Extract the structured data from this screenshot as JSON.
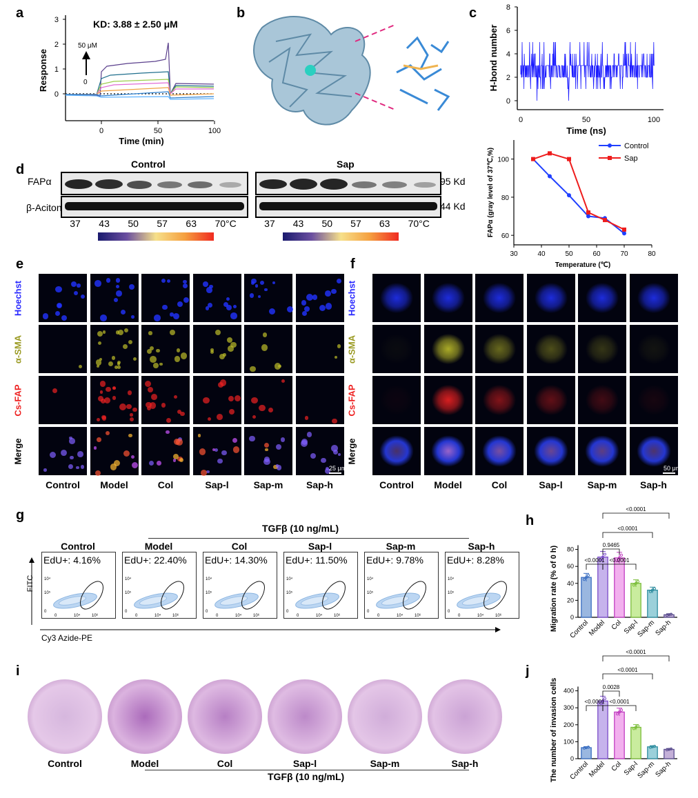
{
  "panels": {
    "a": "a",
    "b": "b",
    "c": "c",
    "d": "d",
    "e": "e",
    "f": "f",
    "g": "g",
    "h": "h",
    "i": "i",
    "j": "j"
  },
  "panel_a": {
    "title": "KD: 3.88 ± 2.50 μM",
    "ylabel": "Response",
    "xlabel": "Time (min)",
    "arrow_top": "50 μM",
    "arrow_bottom": "0",
    "yticks": [
      "0",
      "1",
      "2",
      "3"
    ],
    "xticks": [
      "0",
      "50",
      "100"
    ]
  },
  "panel_c": {
    "ylabel": "H-bond number",
    "xlabel": "Time (ns)",
    "yticks": [
      "0",
      "2",
      "4",
      "6",
      "8"
    ],
    "xticks": [
      "0",
      "50",
      "100"
    ]
  },
  "panel_d": {
    "header_left": "Control",
    "header_right": "Sap",
    "row1": "FAPα",
    "row2": "β-Aciton",
    "size1": "95 Kd",
    "size2": "44 Kd",
    "temps": [
      "37",
      "43",
      "50",
      "57",
      "63",
      "70°C"
    ]
  },
  "panel_e": {
    "rows": [
      "Hoechst",
      "α-SMA",
      "Cs-FAP",
      "Merge"
    ],
    "cols": [
      "Control",
      "Model",
      "Col",
      "Sap-l",
      "Sap-m",
      "Sap-h"
    ],
    "scale": "25 μm"
  },
  "panel_f": {
    "rows": [
      "Hoechst",
      "α-SMA",
      "Cs-FAP",
      "Merge"
    ],
    "cols": [
      "Control",
      "Model",
      "Col",
      "Sap-l",
      "Sap-m",
      "Sap-h"
    ],
    "scale": "50 μm"
  },
  "panel_g": {
    "treatment": "TGFβ (10 ng/mL)",
    "groups": [
      "Control",
      "Model",
      "Col",
      "Sap-l",
      "Sap-m",
      "Sap-h"
    ],
    "edu": [
      "EdU+: 4.16%",
      "EdU+: 22.40%",
      "EdU+: 14.30%",
      "EdU+: 11.50%",
      "EdU+: 9.78%",
      "EdU+: 8.28%"
    ],
    "ylabel": "FITC",
    "xlabel": "Cy3 Azide-PE"
  },
  "panel_i": {
    "groups": [
      "Control",
      "Model",
      "Col",
      "Sap-l",
      "Sap-m",
      "Sap-h"
    ],
    "treatment": "TGFβ (10 ng/mL)"
  },
  "chart_data": [
    {
      "id": "c-bottom",
      "type": "line",
      "ylabel": "FAPα (gray level of 37℃,%)",
      "xlabel": "Temperature (℃)",
      "xlim": [
        30,
        80
      ],
      "ylim": [
        55,
        110
      ],
      "xticks": [
        30,
        40,
        50,
        60,
        70,
        80
      ],
      "yticks": [
        60,
        80,
        100
      ],
      "legend_position": "top-right",
      "series": [
        {
          "name": "Control",
          "color": "#1f3fff",
          "x": [
            37,
            43,
            50,
            57,
            63,
            70
          ],
          "y": [
            100,
            91,
            81,
            70,
            69,
            61
          ]
        },
        {
          "name": "Sap",
          "color": "#ee1c1c",
          "x": [
            37,
            43,
            50,
            57,
            63,
            70
          ],
          "y": [
            100,
            103,
            100,
            72,
            68,
            63
          ]
        }
      ]
    },
    {
      "id": "h",
      "type": "bar",
      "ylabel": "Migration rate (% of 0 h)",
      "categories": [
        "Control",
        "Model",
        "Col",
        "Sap-l",
        "Sap-m",
        "Sap-h"
      ],
      "values": [
        47,
        71,
        70,
        40,
        32,
        3
      ],
      "ylim": [
        0,
        100
      ],
      "yticks": [
        0,
        20,
        40,
        60,
        80
      ],
      "colors": [
        "#9ab7e0",
        "#c6b3ec",
        "#f2b0ee",
        "#c9ec9e",
        "#9bd0da",
        "#c4b0d8"
      ],
      "edge_colors": [
        "#3b6fc2",
        "#7a4cc9",
        "#c03ec0",
        "#7bbd3a",
        "#2f8ea0",
        "#5b4e8f"
      ],
      "comparisons": [
        {
          "a": "Model",
          "b": "Col",
          "p": "0.9465"
        },
        {
          "a": "Control",
          "b": "Model",
          "p": "<0.0001"
        },
        {
          "a": "Model",
          "b": "Sap-l",
          "p": "<0.0001"
        },
        {
          "a": "Model",
          "b": "Sap-m",
          "p": "<0.0001"
        },
        {
          "a": "Model",
          "b": "Sap-h",
          "p": "<0.0001"
        }
      ]
    },
    {
      "id": "j",
      "type": "bar",
      "ylabel": "The number of invasion cells",
      "categories": [
        "Control",
        "Model",
        "Col",
        "Sap-l",
        "Sap-m",
        "Sap-h"
      ],
      "values": [
        65,
        340,
        275,
        185,
        70,
        55
      ],
      "ylim": [
        0,
        500
      ],
      "yticks": [
        0,
        100,
        200,
        300,
        400
      ],
      "colors": [
        "#9ab7e0",
        "#c6b3ec",
        "#f2b0ee",
        "#c9ec9e",
        "#9bd0da",
        "#c4b0d8"
      ],
      "edge_colors": [
        "#3b6fc2",
        "#7a4cc9",
        "#c03ec0",
        "#7bbd3a",
        "#2f8ea0",
        "#5b4e8f"
      ],
      "comparisons": [
        {
          "a": "Model",
          "b": "Col",
          "p": "0.0028"
        },
        {
          "a": "Control",
          "b": "Model",
          "p": "<0.0001"
        },
        {
          "a": "Model",
          "b": "Sap-l",
          "p": "<0.0001"
        },
        {
          "a": "Model",
          "b": "Sap-m",
          "p": "<0.0001"
        },
        {
          "a": "Model",
          "b": "Sap-h",
          "p": "<0.0001"
        }
      ]
    }
  ]
}
